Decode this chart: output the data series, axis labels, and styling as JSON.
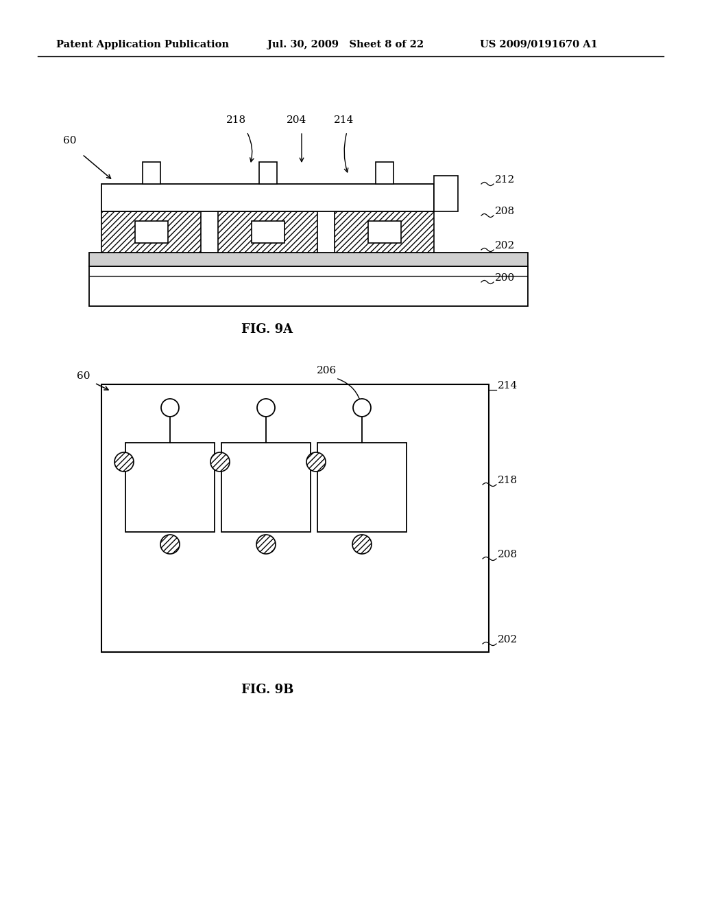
{
  "header_left": "Patent Application Publication",
  "header_mid": "Jul. 30, 2009   Sheet 8 of 22",
  "header_right": "US 2009/0191670 A1",
  "fig9a_label": "FIG. 9A",
  "fig9b_label": "FIG. 9B",
  "bg_color": "#ffffff",
  "line_color": "#000000"
}
